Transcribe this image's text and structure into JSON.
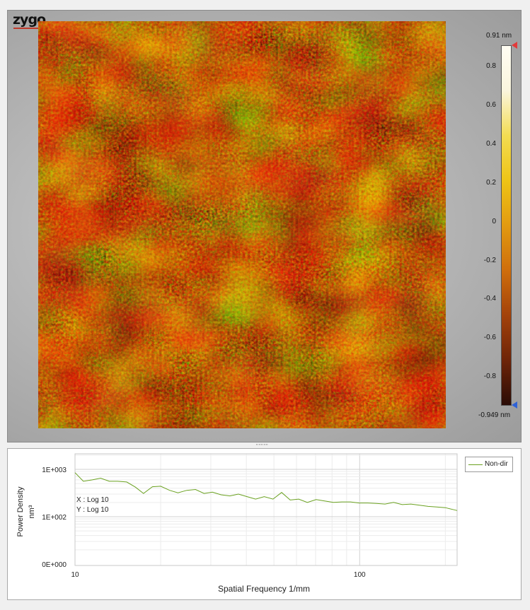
{
  "logo": {
    "text": "zygo"
  },
  "colorbar": {
    "max_label": "0.91 nm",
    "min_label": "-0.949 nm",
    "ticks": [
      "0.8",
      "0.6",
      "0.4",
      "0.2",
      "0",
      "-0.2",
      "-0.4",
      "-0.6",
      "-0.8"
    ],
    "range": [
      -0.949,
      0.91
    ],
    "colors": [
      "#2a0c06",
      "#6e2408",
      "#a3420a",
      "#cf6e0c",
      "#e29a10",
      "#eec416",
      "#f3dc52",
      "#faf5dd",
      "#fffdf3"
    ],
    "max_marker_color": "#e23a3a",
    "min_marker_color": "#2f62d6"
  },
  "splitter": {
    "grip": "\"\"\"\"\""
  },
  "chart_data": {
    "type": "line",
    "ylabel": "Power Density",
    "yunit": "nm³",
    "xlabel": "Spatial Frequency 1/mm",
    "x_scale_label": "X : Log 10",
    "y_scale_label": "Y : Log 10",
    "x_ticks": [
      "10",
      "100"
    ],
    "y_ticks": [
      "1E+003",
      "1E+002",
      "0E+000"
    ],
    "xlim": [
      10,
      220
    ],
    "series": [
      {
        "name": "Non-dir",
        "color": "#6aa120",
        "x": [
          10,
          10.7,
          11.5,
          12.3,
          13.2,
          14.1,
          15.2,
          16.3,
          17.4,
          18.7,
          20,
          21.5,
          23,
          24.7,
          26.5,
          28.4,
          30.4,
          32.6,
          35,
          37.5,
          40.2,
          43.1,
          46.2,
          49.6,
          53.2,
          57,
          61.1,
          65.5,
          70.3,
          75.3,
          80.8,
          86.6,
          92.9,
          99.6,
          106.8,
          114.5,
          122.8,
          131.6,
          141.1,
          151.3,
          162.3,
          174,
          186.6,
          200,
          214.5,
          220
        ],
        "y": [
          850,
          560,
          600,
          650,
          560,
          560,
          540,
          420,
          310,
          430,
          440,
          360,
          320,
          360,
          375,
          310,
          330,
          290,
          275,
          300,
          265,
          235,
          265,
          235,
          325,
          225,
          235,
          200,
          230,
          215,
          200,
          205,
          205,
          195,
          195,
          190,
          185,
          200,
          180,
          185,
          175,
          165,
          160,
          155,
          140,
          135
        ]
      }
    ]
  }
}
